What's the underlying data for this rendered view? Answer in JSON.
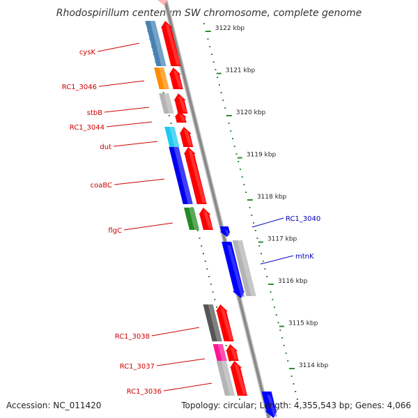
{
  "title": "Rhodospirillum centenum SW chromosome, complete genome",
  "accession": "Accession: NC_011420",
  "summary": "Topology: circular; Length: 4,355,543 bp; Genes: 4,066",
  "colors": {
    "backbone": "#888888",
    "scale": "#2e8b2e",
    "forward_label": "#cc0000",
    "reverse_label": "#0000bb"
  },
  "scale_ticks": [
    "3122 kbp",
    "3121 kbp",
    "3120 kbp",
    "3119 kbp",
    "3118 kbp",
    "3117 kbp",
    "3116 kbp",
    "3115 kbp",
    "3114 kbp"
  ],
  "genes_left": [
    {
      "label": "cysK",
      "color": "#4682b4"
    },
    {
      "label": "RC1_3046",
      "color": "#ff8c00"
    },
    {
      "label": "stbB",
      "color": "#b4b4b4"
    },
    {
      "label": "RC1_3044",
      "color": ""
    },
    {
      "label": "dut",
      "color": "#1ec8f0"
    },
    {
      "label": "coaBC",
      "color": "#0000ee"
    },
    {
      "label": "flgC",
      "color": "#228b22"
    },
    {
      "label": "RC1_3038",
      "color": "#555555"
    },
    {
      "label": "RC1_3037",
      "color": "#ff1493"
    },
    {
      "label": "RC1_3036",
      "color": "#b4b4b4"
    }
  ],
  "genes_right": [
    {
      "label": "RC1_3040",
      "color": "#b4b4b4"
    },
    {
      "label": "mtnK",
      "color": "#b4b4b4"
    }
  ]
}
